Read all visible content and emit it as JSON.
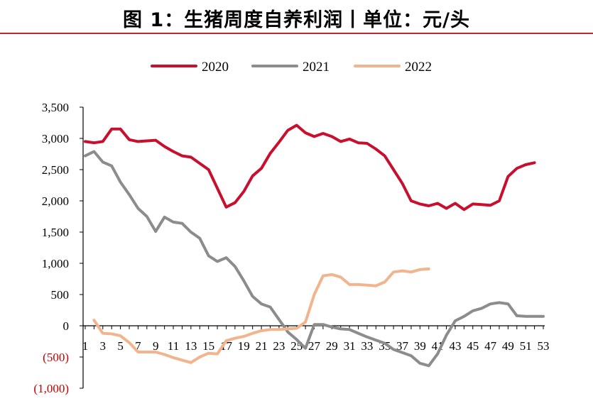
{
  "title": "图 1：生猪周度自养利润丨单位：元/头",
  "chart_data": {
    "type": "line",
    "ylim": [
      -1000,
      3500
    ],
    "y_ticks": [
      {
        "value": 3500,
        "label": "3,500"
      },
      {
        "value": 3000,
        "label": "3,000"
      },
      {
        "value": 2500,
        "label": "2,500"
      },
      {
        "value": 2000,
        "label": "2,000"
      },
      {
        "value": 1500,
        "label": "1,500"
      },
      {
        "value": 1000,
        "label": "1,000"
      },
      {
        "value": 500,
        "label": "500"
      },
      {
        "value": 0,
        "label": "0"
      },
      {
        "value": -500,
        "label": "(500)"
      },
      {
        "value": -1000,
        "label": "(1,000)"
      }
    ],
    "x_ticks": [
      "1",
      "3",
      "5",
      "7",
      "9",
      "11",
      "13",
      "15",
      "17",
      "19",
      "21",
      "23",
      "25",
      "27",
      "29",
      "31",
      "33",
      "35",
      "37",
      "39",
      "41",
      "43",
      "45",
      "47",
      "49",
      "51",
      "53"
    ],
    "x_range": [
      1,
      53
    ],
    "grid": false,
    "legend": "top",
    "series": [
      {
        "name": "2020",
        "color": "#c8102e",
        "x": [
          1,
          2,
          3,
          4,
          5,
          6,
          7,
          8,
          9,
          10,
          11,
          12,
          13,
          14,
          15,
          16,
          17,
          18,
          19,
          20,
          21,
          22,
          23,
          24,
          25,
          26,
          27,
          28,
          29,
          30,
          31,
          32,
          33,
          34,
          35,
          36,
          37,
          38,
          39,
          40,
          41,
          42,
          43,
          44,
          45,
          46,
          47,
          48,
          49,
          50,
          51,
          52
        ],
        "values": [
          2950,
          2930,
          2950,
          3150,
          3150,
          2980,
          2950,
          2960,
          2970,
          2870,
          2790,
          2720,
          2700,
          2600,
          2500,
          2200,
          1900,
          1970,
          2150,
          2400,
          2520,
          2760,
          2940,
          3130,
          3210,
          3090,
          3030,
          3080,
          3030,
          2950,
          2990,
          2930,
          2920,
          2830,
          2720,
          2500,
          2280,
          2000,
          1950,
          1920,
          1960,
          1880,
          1960,
          1860,
          1950,
          1940,
          1930,
          2000,
          2390,
          2520,
          2580,
          2610
        ]
      },
      {
        "name": "2021",
        "color": "#8c8c8c",
        "x": [
          1,
          2,
          3,
          4,
          5,
          6,
          7,
          8,
          9,
          10,
          11,
          12,
          13,
          14,
          15,
          16,
          17,
          18,
          19,
          20,
          21,
          22,
          23,
          24,
          25,
          26,
          27,
          28,
          29,
          30,
          31,
          32,
          33,
          34,
          35,
          36,
          37,
          38,
          39,
          40,
          41,
          42,
          43,
          44,
          45,
          46,
          47,
          48,
          49,
          50,
          51,
          52,
          53
        ],
        "values": [
          2720,
          2790,
          2620,
          2560,
          2300,
          2100,
          1880,
          1750,
          1510,
          1740,
          1660,
          1640,
          1500,
          1400,
          1120,
          1030,
          1090,
          950,
          720,
          470,
          350,
          300,
          100,
          -100,
          -220,
          -360,
          20,
          20,
          -20,
          -50,
          -60,
          -120,
          -180,
          -230,
          -280,
          -380,
          -430,
          -480,
          -600,
          -640,
          -450,
          -150,
          80,
          150,
          240,
          280,
          350,
          370,
          350,
          160,
          150,
          150,
          150
        ]
      },
      {
        "name": "2022",
        "color": "#f2b48c",
        "x": [
          2,
          3,
          4,
          5,
          6,
          7,
          8,
          9,
          10,
          11,
          12,
          13,
          14,
          15,
          16,
          17,
          18,
          19,
          20,
          21,
          22,
          23,
          24,
          25,
          26,
          27,
          28,
          29,
          30,
          31,
          32,
          33,
          34,
          35,
          36,
          37,
          38,
          39,
          40
        ],
        "values": [
          90,
          -120,
          -130,
          -160,
          -270,
          -420,
          -420,
          -420,
          -460,
          -510,
          -550,
          -590,
          -500,
          -440,
          -450,
          -240,
          -200,
          -170,
          -120,
          -80,
          -60,
          -60,
          -50,
          -40,
          60,
          500,
          800,
          820,
          780,
          660,
          660,
          650,
          640,
          700,
          860,
          880,
          860,
          900,
          910
        ]
      }
    ]
  }
}
